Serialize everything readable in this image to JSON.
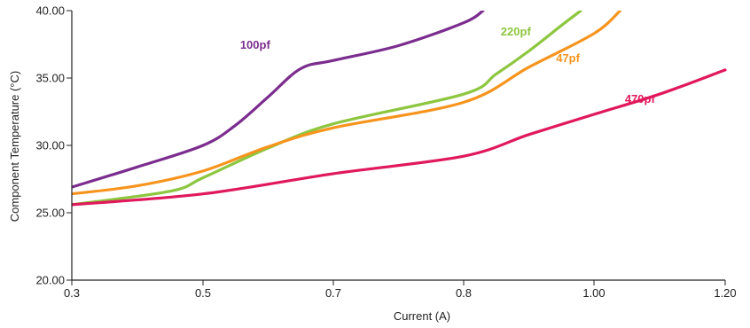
{
  "chart_data": {
    "type": "line",
    "title": "",
    "xlabel": "Current (A)",
    "ylabel": "Component Temperature (°C)",
    "xlim": [
      0.3,
      1.2
    ],
    "ylim": [
      20,
      40
    ],
    "x_ticks": [
      0.3,
      0.5,
      0.7,
      0.8,
      1.0,
      1.2
    ],
    "x_tick_labels": [
      "0.3",
      "0.5",
      "0.7",
      "0.8",
      "1.00",
      "1.20"
    ],
    "y_ticks": [
      20,
      25,
      30,
      35,
      40
    ],
    "y_tick_labels": [
      "20.00",
      "25.00",
      "30.00",
      "35.00",
      "40.00"
    ],
    "grid": false,
    "series": [
      {
        "name": "100pf",
        "color": "#7b2d8e",
        "points": [
          [
            0.3,
            26.9
          ],
          [
            0.4,
            28.4
          ],
          [
            0.5,
            30.0
          ],
          [
            0.55,
            31.5
          ],
          [
            0.6,
            33.6
          ],
          [
            0.65,
            35.7
          ],
          [
            0.7,
            36.3
          ],
          [
            0.75,
            37.4
          ],
          [
            0.8,
            39.1
          ],
          [
            0.83,
            40.0
          ]
        ]
      },
      {
        "name": "220pf",
        "color": "#8dc63f",
        "points": [
          [
            0.3,
            25.6
          ],
          [
            0.45,
            26.6
          ],
          [
            0.5,
            27.6
          ],
          [
            0.6,
            29.8
          ],
          [
            0.7,
            31.6
          ],
          [
            0.8,
            33.8
          ],
          [
            0.85,
            35.3
          ],
          [
            0.9,
            37.0
          ],
          [
            0.95,
            38.9
          ],
          [
            0.98,
            40.0
          ]
        ]
      },
      {
        "name": "47pf",
        "color": "#f7941d",
        "points": [
          [
            0.3,
            26.4
          ],
          [
            0.4,
            27.0
          ],
          [
            0.5,
            28.1
          ],
          [
            0.6,
            29.9
          ],
          [
            0.7,
            31.3
          ],
          [
            0.8,
            33.2
          ],
          [
            0.9,
            35.8
          ],
          [
            1.0,
            38.3
          ],
          [
            1.04,
            40.0
          ]
        ]
      },
      {
        "name": "470pf",
        "color": "#e0185c",
        "points": [
          [
            0.3,
            25.6
          ],
          [
            0.5,
            26.4
          ],
          [
            0.7,
            27.9
          ],
          [
            0.8,
            29.2
          ],
          [
            0.9,
            30.8
          ],
          [
            1.0,
            32.3
          ],
          [
            1.1,
            33.8
          ],
          [
            1.2,
            35.6
          ]
        ]
      }
    ],
    "annotations": [
      {
        "text": "100pf",
        "series": 0,
        "x": 0.58,
        "y": 37.5
      },
      {
        "text": "220pf",
        "series": 1,
        "x": 0.88,
        "y": 38.5
      },
      {
        "text": "47pf",
        "series": 2,
        "x": 0.96,
        "y": 36.5
      },
      {
        "text": "470pf",
        "series": 3,
        "x": 1.07,
        "y": 33.5
      }
    ]
  }
}
